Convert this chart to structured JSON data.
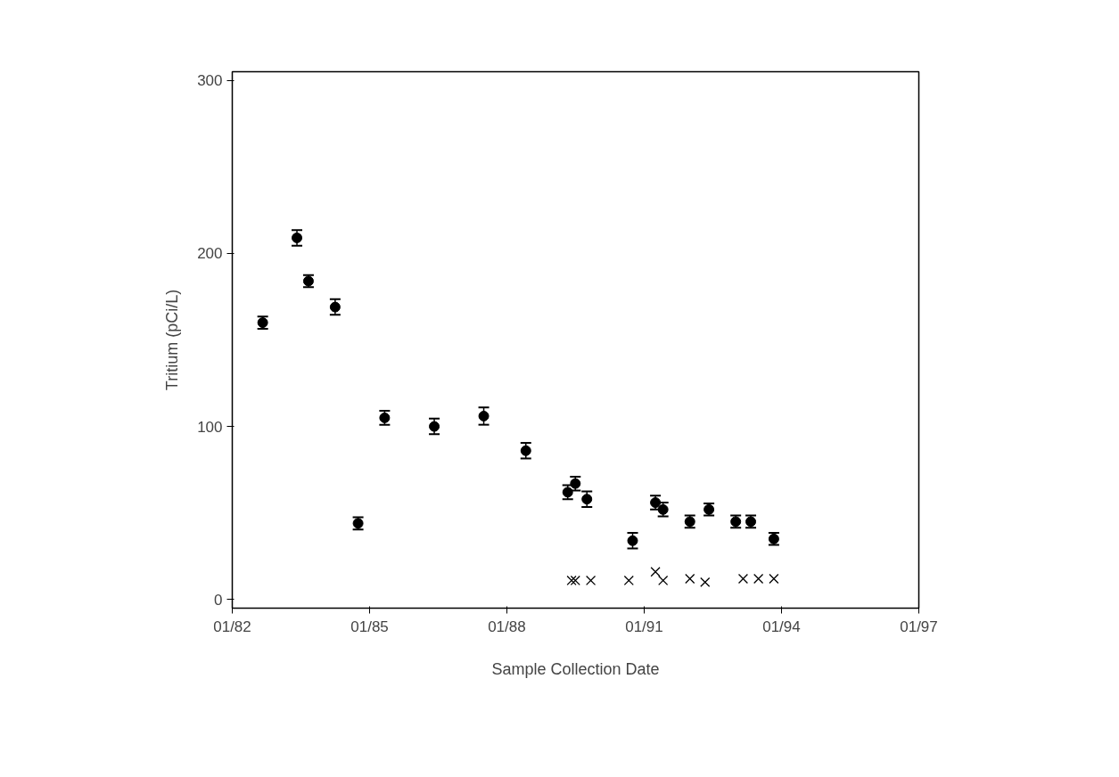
{
  "chart_data": {
    "type": "scatter",
    "xlabel": "Sample Collection Date",
    "ylabel": "Tritium (pCi/L)",
    "xlim": [
      "1982-01",
      "1997-01"
    ],
    "ylim": [
      -5,
      305
    ],
    "xticks": [
      {
        "value": "1982-01",
        "label": "01/82"
      },
      {
        "value": "1985-01",
        "label": "01/85"
      },
      {
        "value": "1988-01",
        "label": "01/88"
      },
      {
        "value": "1991-01",
        "label": "01/91"
      },
      {
        "value": "1994-01",
        "label": "01/94"
      },
      {
        "value": "1997-01",
        "label": "01/97"
      }
    ],
    "yticks": [
      0,
      100,
      200,
      300
    ],
    "grid": false,
    "series": [
      {
        "color": "#000000",
        "marker": "circle",
        "x": [
          "1982-09",
          "1983-06",
          "1983-09",
          "1984-04",
          "1984-10",
          "1985-05",
          "1986-06",
          "1987-07",
          "1988-06",
          "1989-05",
          "1989-07",
          "1989-10",
          "1990-10",
          "1991-04",
          "1991-06",
          "1992-01",
          "1992-06",
          "1993-01",
          "1993-05",
          "1993-11"
        ],
        "values": [
          160,
          209,
          184,
          169,
          44,
          105,
          100,
          106,
          86,
          62,
          67,
          58,
          34,
          56,
          52,
          45,
          52,
          45,
          45,
          35
        ],
        "errors": [
          3.5,
          4.5,
          3.5,
          4.5,
          3.5,
          4,
          4.5,
          5,
          4.5,
          4,
          4,
          4.5,
          4.5,
          4,
          4,
          3.5,
          3.5,
          3.5,
          3.5,
          3.5
        ]
      },
      {
        "color": "#000000",
        "marker": "cross",
        "x": [
          "1989-06",
          "1989-07",
          "1989-11",
          "1990-09",
          "1991-04",
          "1991-06",
          "1992-01",
          "1992-05",
          "1993-03",
          "1993-07",
          "1993-11"
        ],
        "values": [
          11,
          11,
          11,
          11,
          16,
          11,
          12,
          10,
          12,
          12,
          12
        ]
      }
    ]
  }
}
